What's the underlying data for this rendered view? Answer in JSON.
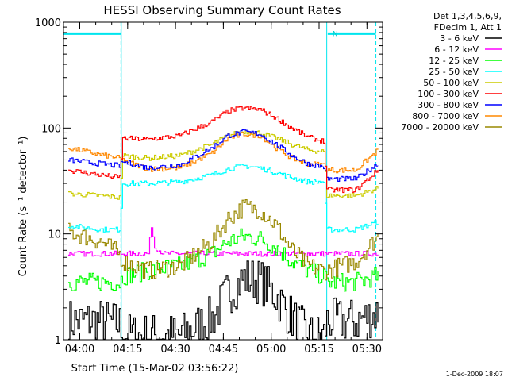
{
  "chart_data": {
    "type": "line",
    "title": "HESSI Observing Summary Count Rates",
    "xlabel": "Start Time (15-Mar-02 03:56:22)",
    "ylabel": "Count Rate (s⁻¹ detector⁻¹)",
    "ylog": true,
    "ylim": [
      1,
      1000
    ],
    "xlim_minutes": [
      -1.5,
      98.5
    ],
    "x_ticks": [
      {
        "label": "04:00",
        "min": 3.6
      },
      {
        "label": "04:15",
        "min": 18.6
      },
      {
        "label": "04:30",
        "min": 33.6
      },
      {
        "label": "04:45",
        "min": 48.6
      },
      {
        "label": "05:00",
        "min": 63.6
      },
      {
        "label": "05:15",
        "min": 78.6
      },
      {
        "label": "05:30",
        "min": 93.6
      }
    ],
    "y_ticks": [
      {
        "label": "1",
        "value": 1
      },
      {
        "label": "10",
        "value": 10
      },
      {
        "label": "100",
        "value": 100
      },
      {
        "label": "1000",
        "value": 1000
      }
    ],
    "legend_header": [
      "Det 1,3,4,5,6,9,",
      "FDecim 1, Att 1"
    ],
    "legend_position": "top-right",
    "night_markers": [
      {
        "label": "",
        "start": -1.5,
        "end": 16.5,
        "level": 780
      },
      {
        "label": "N",
        "start": 81.3,
        "end": 96.4,
        "level": 780
      }
    ],
    "eclipse_edges": [
      16.6,
      81.0
    ],
    "series": [
      {
        "name": "3 - 6 keV",
        "color": "#000000",
        "x": [
          0,
          10,
          16,
          17,
          25,
          35,
          45,
          50,
          55,
          60,
          65,
          70,
          75,
          80,
          81,
          90,
          97
        ],
        "y": [
          1.5,
          1.5,
          1.4,
          1.1,
          1.1,
          1.1,
          1.6,
          2.8,
          3.8,
          3.6,
          2.6,
          1.6,
          1.1,
          1.1,
          1.5,
          1.5,
          1.8
        ]
      },
      {
        "name": "6 - 12 keV",
        "color": "#ff00ff",
        "x": [
          0,
          10,
          16,
          17,
          25,
          26,
          27,
          30,
          40,
          50,
          55,
          60,
          65,
          75,
          80,
          81,
          90,
          97
        ],
        "y": [
          6.5,
          6.5,
          6.5,
          6.5,
          6.5,
          12,
          7.5,
          6.5,
          6.5,
          6.5,
          6.5,
          6.5,
          6.5,
          6.5,
          6.5,
          6.5,
          6.5,
          6.5
        ]
      },
      {
        "name": "12 - 25 keV",
        "color": "#00ff00",
        "x": [
          0,
          10,
          16,
          17,
          25,
          35,
          45,
          50,
          55,
          60,
          65,
          70,
          75,
          80,
          81,
          90,
          97
        ],
        "y": [
          3.5,
          3.5,
          3.5,
          4.0,
          4.5,
          5.0,
          6.5,
          8.5,
          9.5,
          9.0,
          7.5,
          5.5,
          4.5,
          4.0,
          3.5,
          3.5,
          4.0
        ]
      },
      {
        "name": "25 - 50 keV",
        "color": "#00ffff",
        "x": [
          0,
          10,
          16,
          17,
          25,
          35,
          45,
          50,
          55,
          60,
          65,
          70,
          75,
          80,
          81,
          90,
          97
        ],
        "y": [
          12,
          11,
          11,
          30,
          30,
          31,
          36,
          41,
          44,
          42,
          38,
          34,
          31,
          31,
          11,
          11,
          13
        ]
      },
      {
        "name": "50 - 100 keV",
        "color": "#cccc00",
        "x": [
          0,
          10,
          16,
          17,
          25,
          35,
          45,
          50,
          55,
          60,
          65,
          70,
          75,
          80,
          81,
          90,
          97
        ],
        "y": [
          24,
          23,
          22,
          55,
          52,
          55,
          70,
          85,
          93,
          90,
          80,
          70,
          62,
          60,
          23,
          23,
          27
        ]
      },
      {
        "name": "100 - 300 keV",
        "color": "#ff0000",
        "x": [
          0,
          10,
          16,
          17,
          25,
          35,
          45,
          50,
          55,
          60,
          65,
          70,
          75,
          80,
          81,
          90,
          97
        ],
        "y": [
          40,
          36,
          34,
          80,
          78,
          85,
          115,
          145,
          155,
          150,
          125,
          100,
          82,
          75,
          26,
          26,
          40
        ]
      },
      {
        "name": "300 - 800 keV",
        "color": "#0000ff",
        "x": [
          0,
          10,
          16,
          17,
          25,
          35,
          45,
          50,
          55,
          60,
          65,
          70,
          75,
          80,
          81,
          90,
          97
        ],
        "y": [
          50,
          46,
          44,
          48,
          42,
          45,
          65,
          85,
          92,
          88,
          70,
          55,
          46,
          43,
          33,
          33,
          46
        ]
      },
      {
        "name": "800 - 7000 keV",
        "color": "#ff8800",
        "x": [
          0,
          10,
          16,
          17,
          25,
          35,
          45,
          50,
          55,
          60,
          65,
          70,
          75,
          80,
          81,
          90,
          97
        ],
        "y": [
          65,
          56,
          52,
          50,
          41,
          42,
          58,
          80,
          88,
          85,
          65,
          52,
          46,
          45,
          40,
          40,
          62
        ]
      },
      {
        "name": "7000 - 20000 keV",
        "color": "#998800",
        "x": [
          0,
          10,
          16,
          17,
          25,
          35,
          45,
          50,
          55,
          60,
          65,
          70,
          75,
          80,
          81,
          90,
          97
        ],
        "y": [
          10.5,
          8.5,
          6.5,
          5.5,
          4.5,
          5.0,
          8.5,
          14,
          18,
          17,
          12,
          7,
          5,
          4.5,
          4.5,
          5.5,
          9.5
        ]
      }
    ]
  },
  "footer_date": "1-Dec-2009 18:07"
}
